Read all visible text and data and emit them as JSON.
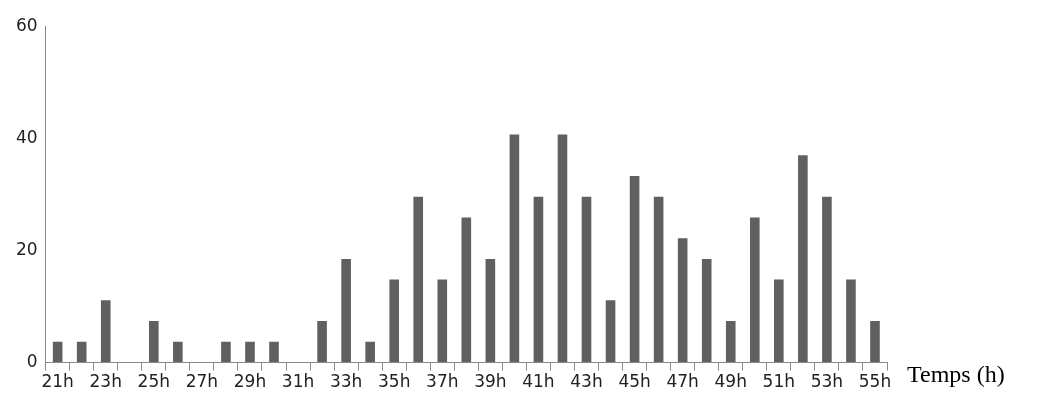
{
  "chart_data": {
    "type": "bar",
    "xlabel": "Temps (h)",
    "categories": [
      "21h",
      null,
      "23h",
      null,
      "25h",
      null,
      "27h",
      null,
      "29h",
      null,
      "31h",
      null,
      "33h",
      null,
      "35h",
      null,
      "37h",
      null,
      "39h",
      null,
      "41h",
      null,
      "43h",
      null,
      "45h",
      null,
      "47h",
      null,
      "49h",
      null,
      "51h",
      null,
      "53h",
      null,
      "55h"
    ],
    "values": [
      3.7,
      3.7,
      11.1,
      0,
      7.4,
      3.7,
      0,
      3.7,
      3.7,
      3.7,
      0,
      7.4,
      18.5,
      3.7,
      14.8,
      29.6,
      14.8,
      25.9,
      18.5,
      40.7,
      29.6,
      40.7,
      29.6,
      11.1,
      33.3,
      29.6,
      22.2,
      18.5,
      7.4,
      25.9,
      14.8,
      37,
      29.6,
      14.8,
      7.4
    ],
    "color": "#606060",
    "ylim": [
      0,
      60
    ],
    "yticks": [
      0,
      20,
      40,
      60
    ],
    "grid": false,
    "legend": false
  }
}
